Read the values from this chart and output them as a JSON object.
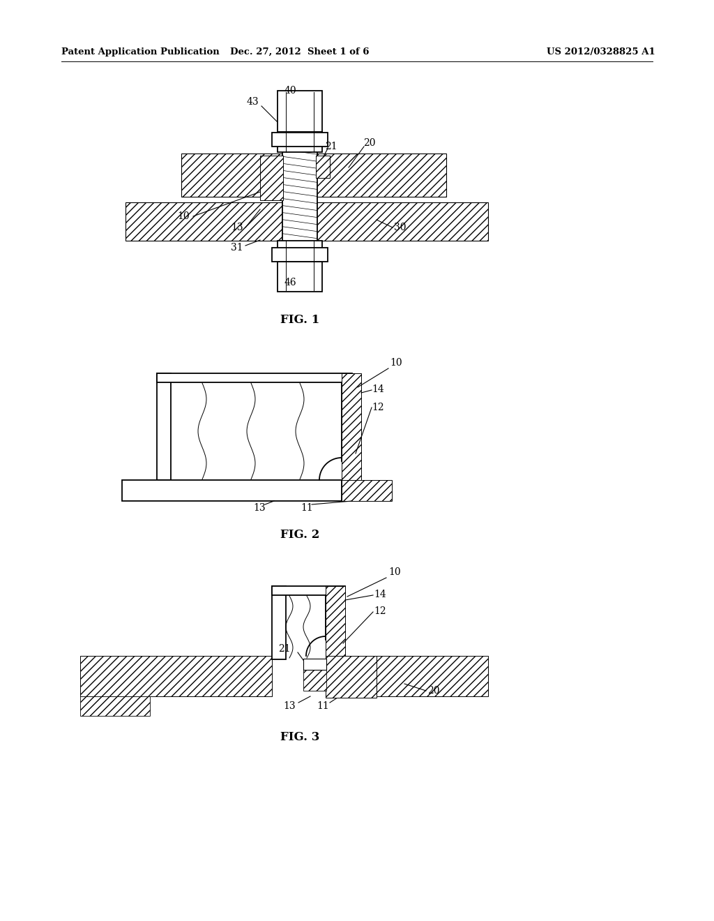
{
  "bg_color": "#ffffff",
  "header_left": "Patent Application Publication",
  "header_center": "Dec. 27, 2012  Sheet 1 of 6",
  "header_right": "US 2012/0328825 A1",
  "fig1_caption": "FIG. 1",
  "fig2_caption": "FIG. 2",
  "fig3_caption": "FIG. 3",
  "line_color": "#000000",
  "hatch_pattern": "///",
  "hatch_lw": 0.5
}
